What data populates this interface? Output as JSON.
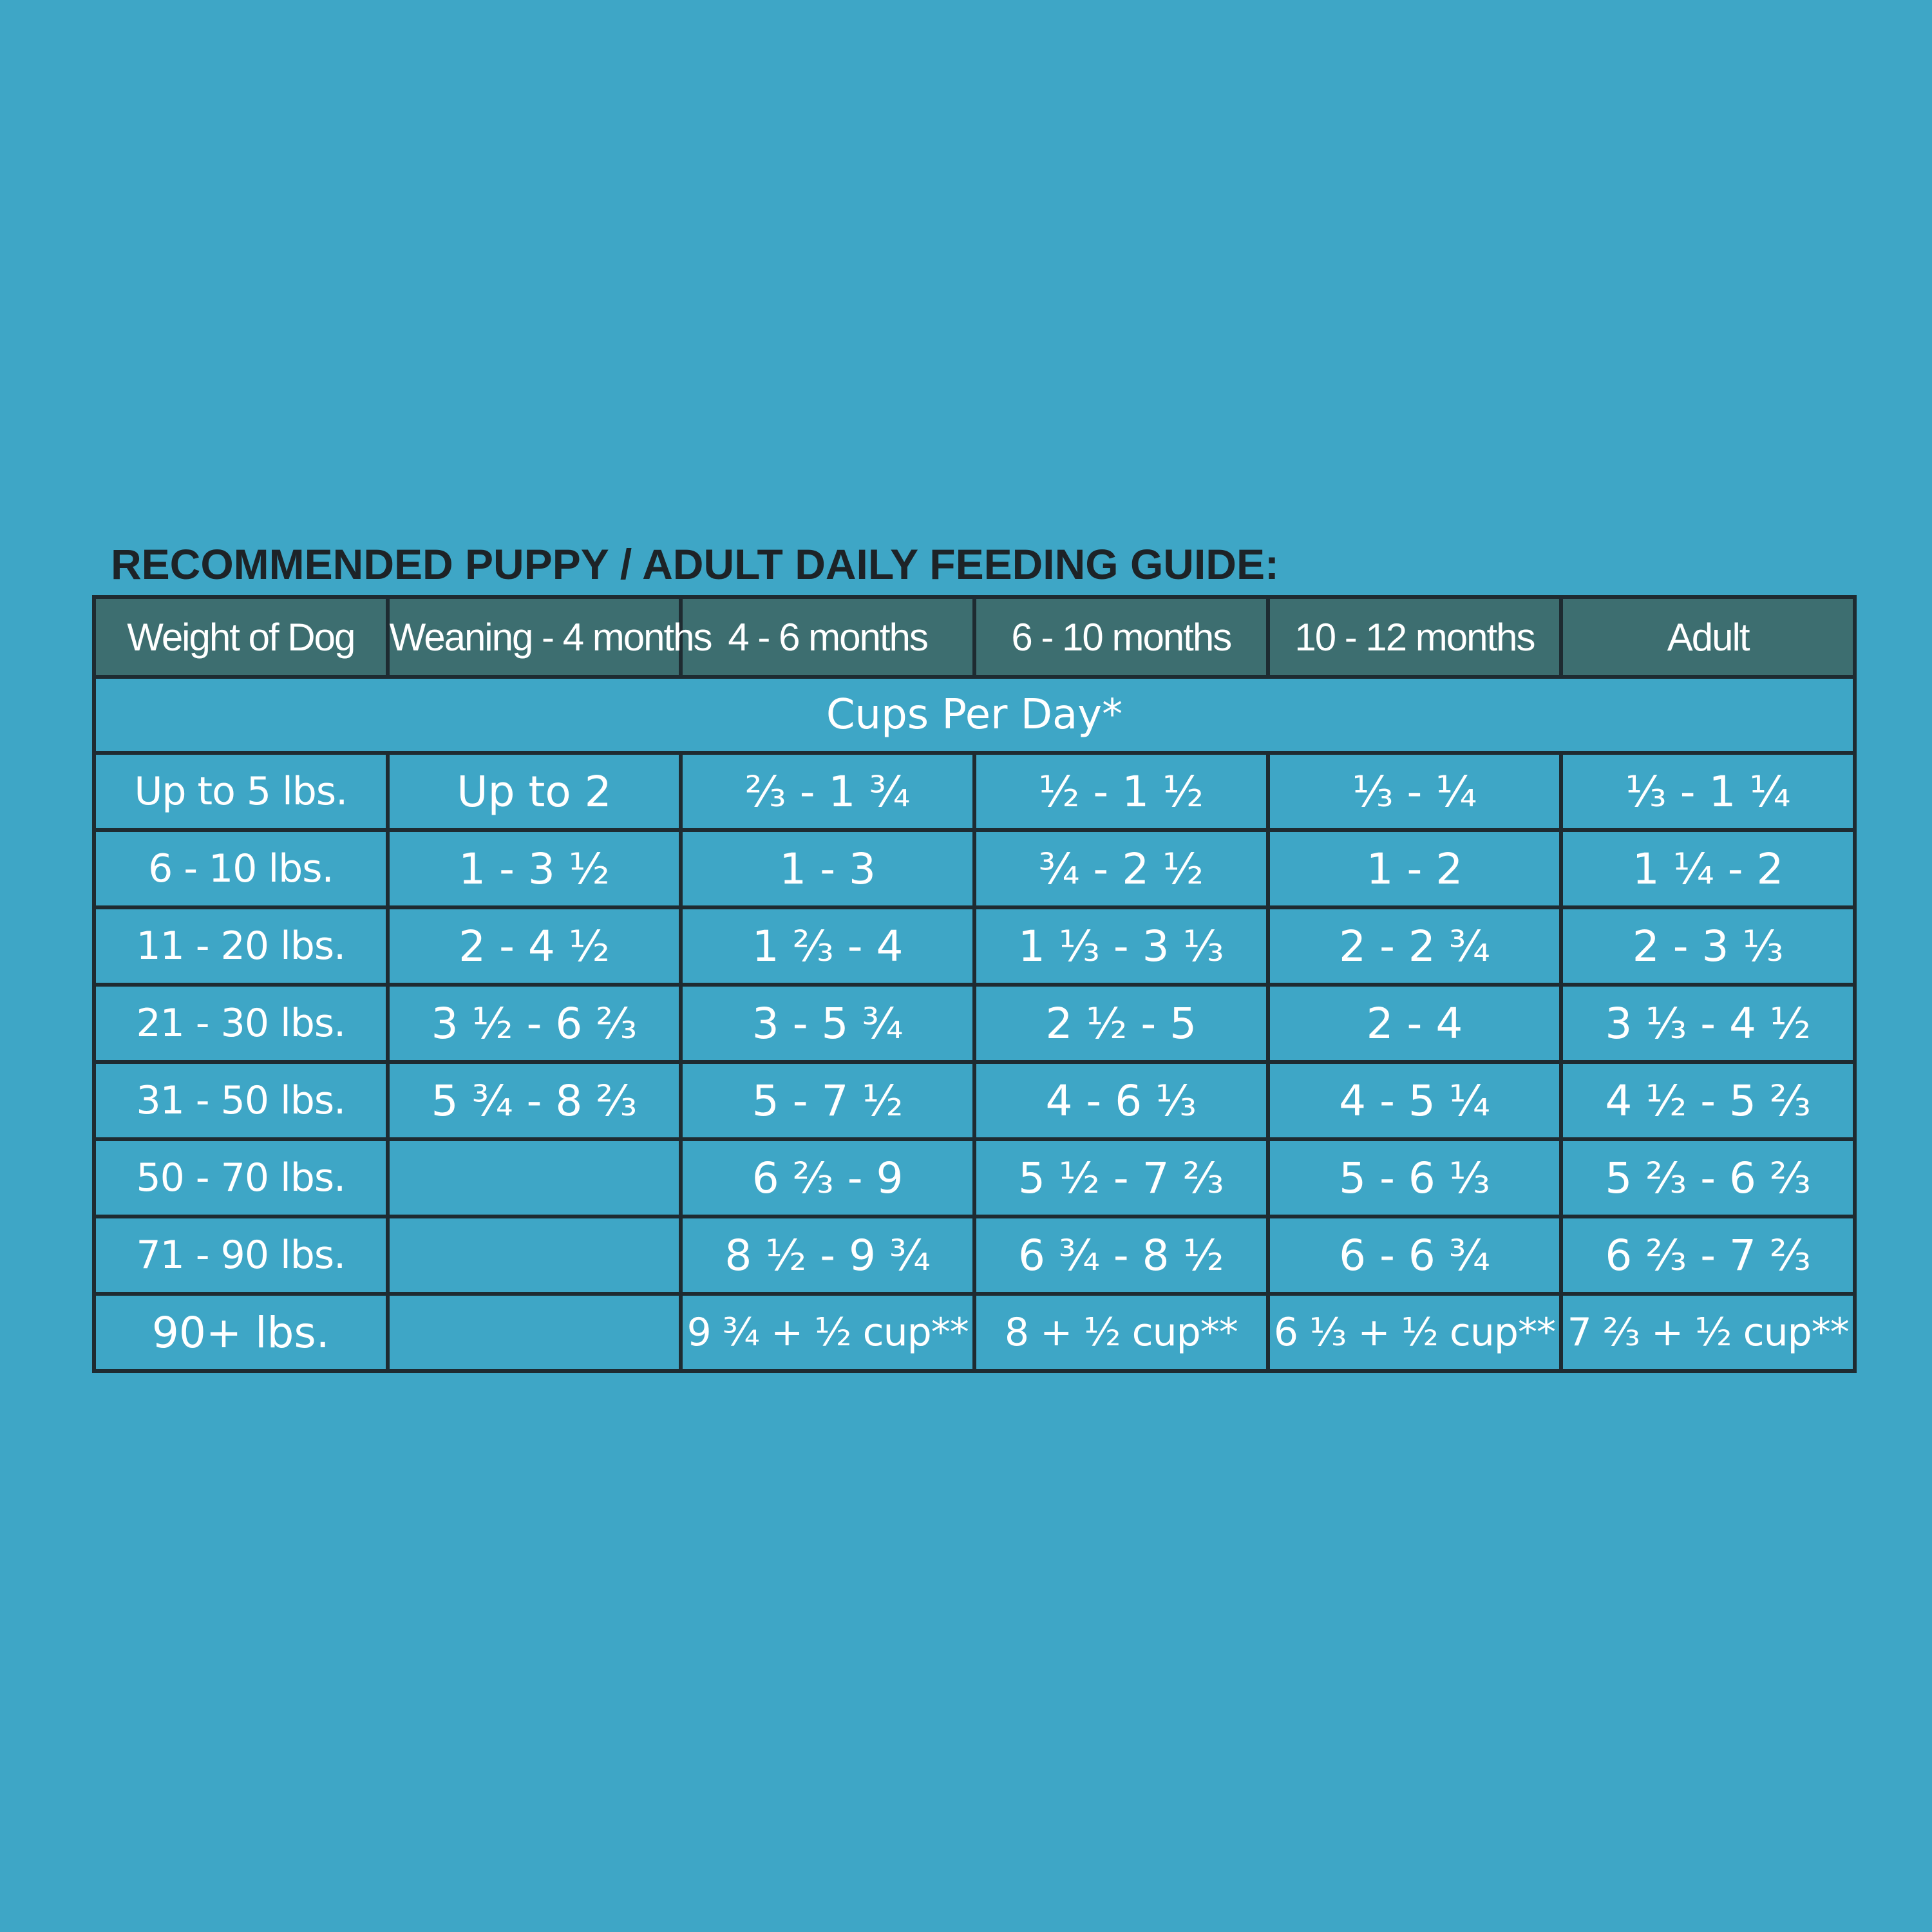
{
  "title": "RECOMMENDED PUPPY / ADULT DAILY FEEDING GUIDE:",
  "table": {
    "header": [
      "Weight of Dog",
      "Weaning - 4 months",
      "4 - 6 months",
      "6 - 10 months",
      "10 - 12 months",
      "Adult"
    ],
    "subheader": "Cups Per Day*",
    "rows": [
      [
        "Up to 5 lbs.",
        "Up to 2",
        "⅔ - 1 ¾",
        "½ - 1 ½",
        "⅓ - ¼",
        "⅓ - 1 ¼"
      ],
      [
        "6 - 10 lbs.",
        "1 - 3 ½",
        "1 - 3",
        "¾ - 2 ½",
        "1 - 2",
        "1 ¼ - 2"
      ],
      [
        "11 - 20 lbs.",
        "2 - 4 ½",
        "1 ⅔ - 4",
        "1 ⅓ - 3 ⅓",
        "2 - 2 ¾",
        "2 - 3 ⅓"
      ],
      [
        "21 - 30 lbs.",
        "3 ½ - 6 ⅔",
        "3 - 5 ¾",
        "2 ½ - 5",
        "2 - 4",
        "3 ⅓ - 4 ½"
      ],
      [
        "31 - 50 lbs.",
        "5 ¾ - 8 ⅔",
        "5 - 7 ½",
        "4 - 6 ⅓",
        "4 - 5 ¼",
        "4 ½ - 5 ⅔"
      ],
      [
        "50 - 70 lbs.",
        null,
        "6 ⅔ - 9",
        "5 ½ -  7 ⅔",
        "5 -  6 ⅓",
        "5 ⅔ -  6 ⅔"
      ],
      [
        "71 - 90 lbs.",
        null,
        "8 ½ - 9 ¾",
        "6 ¾ -  8 ½",
        "6 -  6 ¾",
        "6 ⅔ -  7 ⅔"
      ],
      [
        "90+ lbs.",
        null,
        "9 ¾ + ½ cup**",
        "8 + ½ cup**",
        "6 ⅓ + ½ cup**",
        "7 ⅔ + ½ cup**"
      ]
    ]
  }
}
